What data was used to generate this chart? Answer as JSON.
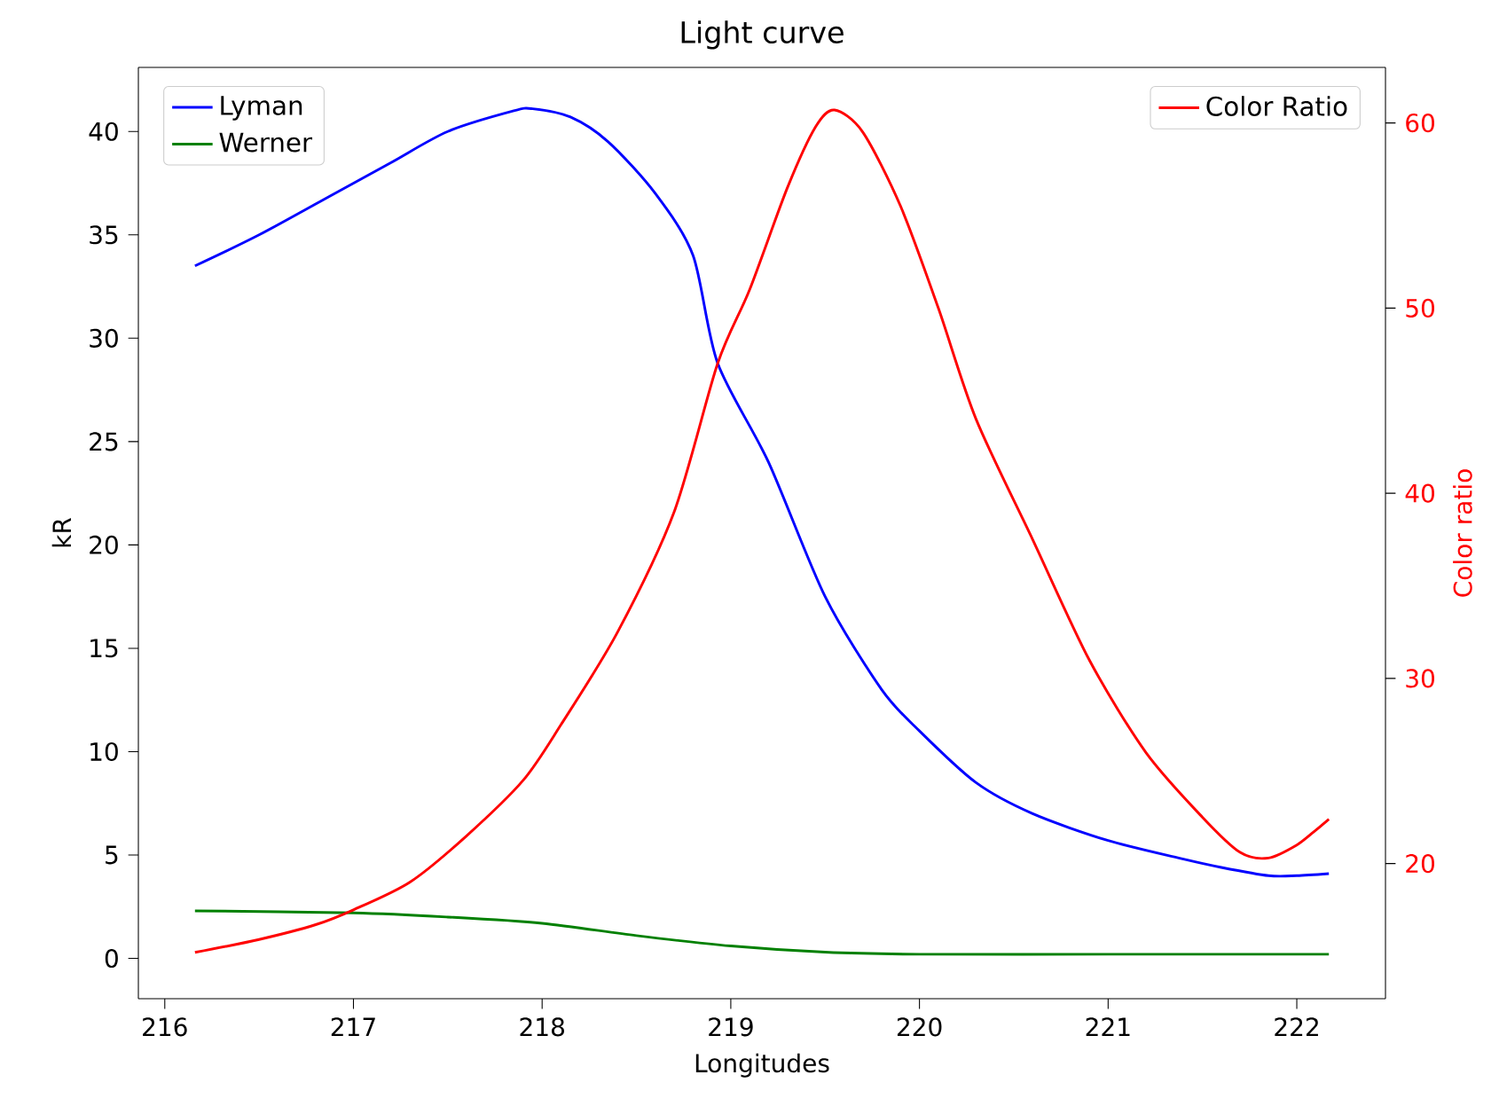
{
  "chart_data": {
    "type": "line",
    "title": "Light curve",
    "xlabel": "Longitudes",
    "ylabel": "kR",
    "y2label": "Color ratio",
    "xlim": [
      215.86,
      222.47
    ],
    "xticks": [
      216,
      217,
      218,
      219,
      220,
      221,
      222
    ],
    "ylim": [
      -1.95,
      43.1
    ],
    "yticks": [
      0,
      5,
      10,
      15,
      20,
      25,
      30,
      35,
      40
    ],
    "y2lim": [
      12.7,
      63
    ],
    "y2ticks": [
      20,
      30,
      40,
      50,
      60
    ],
    "legend": "top left",
    "grid": false,
    "series": [
      {
        "name": "Lyman",
        "color": "#0000ff",
        "x": [
          216.16,
          216.5,
          216.9,
          217.2,
          217.5,
          217.85,
          217.95,
          218.15,
          218.35,
          218.6,
          218.8,
          218.93,
          219.2,
          219.5,
          219.8,
          220.0,
          220.3,
          220.6,
          221.0,
          221.4,
          221.6,
          221.85,
          222.0,
          222.17
        ],
        "values": [
          33.5,
          35,
          37,
          38.5,
          40,
          41,
          41.1,
          40.7,
          39.5,
          37,
          34,
          28.8,
          24,
          17.5,
          13,
          11,
          8.5,
          7,
          5.7,
          4.8,
          4.4,
          4.0,
          4.0,
          4.1
        ]
      },
      {
        "name": "Werner",
        "color": "#008000",
        "x": [
          216.16,
          217.0,
          217.5,
          218.0,
          218.5,
          219.0,
          219.5,
          220.0,
          221.0,
          222.0,
          222.17
        ],
        "values": [
          2.3,
          2.2,
          2.0,
          1.7,
          1.1,
          0.6,
          0.3,
          0.2,
          0.2,
          0.2,
          0.2
        ]
      },
      {
        "name": "Color Ratio",
        "color": "#ff0000",
        "axis": "y2",
        "x": [
          216.16,
          216.5,
          216.8,
          217.0,
          217.3,
          217.6,
          217.9,
          218.1,
          218.4,
          218.7,
          218.93,
          219.1,
          219.3,
          219.45,
          219.55,
          219.7,
          219.9,
          220.1,
          220.3,
          220.6,
          220.9,
          221.2,
          221.5,
          221.7,
          221.85,
          222.0,
          222.1,
          222.17
        ],
        "values": [
          15.2,
          15.9,
          16.7,
          17.5,
          19,
          21.5,
          24.5,
          27.5,
          32.5,
          39,
          47,
          51,
          56.5,
          59.8,
          60.7,
          59.5,
          55.5,
          50,
          44,
          37.5,
          31,
          26,
          22.5,
          20.6,
          20.3,
          21,
          21.8,
          22.4
        ]
      }
    ]
  }
}
